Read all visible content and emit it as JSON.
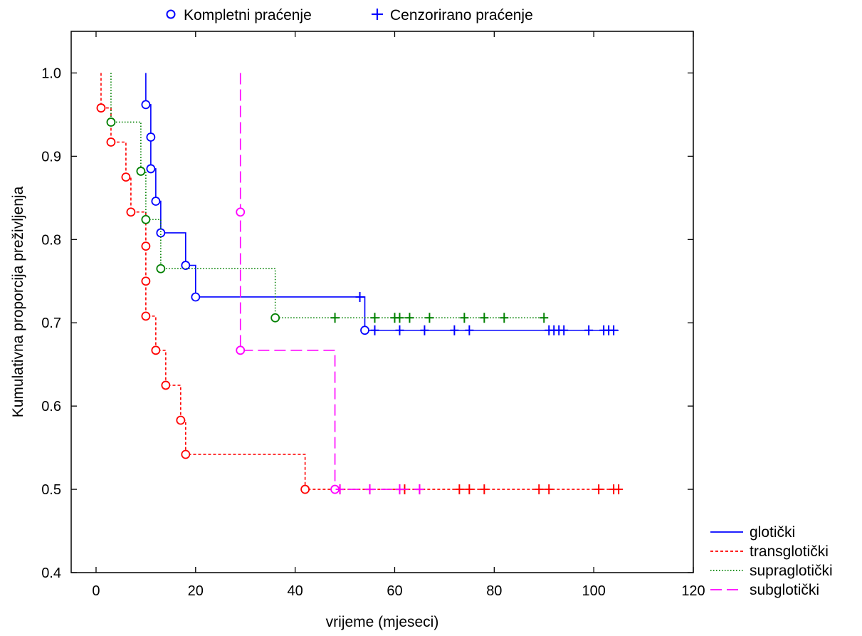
{
  "chart_data": {
    "type": "line",
    "subtype": "kaplan-meier step",
    "title": "",
    "xlabel": "vrijeme (mjeseci)",
    "ylabel": "Kumulativna proporcija preživljenja",
    "xlim": [
      -5,
      120
    ],
    "ylim": [
      0.4,
      1.05
    ],
    "x_ticks": [
      0,
      20,
      40,
      60,
      80,
      100,
      120
    ],
    "y_ticks": [
      0.4,
      0.5,
      0.6,
      0.7,
      0.8,
      0.9,
      1.0
    ],
    "x_tick_labels": [
      "0",
      "20",
      "40",
      "60",
      "80",
      "100",
      "120"
    ],
    "y_tick_labels": [
      "0.4",
      "0.5",
      "0.6",
      "0.7",
      "0.8",
      "0.9",
      "1.0"
    ],
    "marker_legend": {
      "complete": "Kompletni praćenje",
      "censored": "Cenzorirano praćenje",
      "color": "#0000ff",
      "placement": "top"
    },
    "series_legend_placement": "bottom-right",
    "series": [
      {
        "name": "glotički",
        "color": "#0000ff",
        "dash": "solid",
        "start": [
          10,
          1.0
        ],
        "events": [
          [
            10,
            0.962
          ],
          [
            11,
            0.923
          ],
          [
            11,
            0.885
          ],
          [
            12,
            0.846
          ],
          [
            13,
            0.808
          ],
          [
            18,
            0.769
          ],
          [
            20,
            0.731
          ],
          [
            54,
            0.691
          ]
        ],
        "censored": [
          [
            53,
            0.731
          ],
          [
            56,
            0.691
          ],
          [
            61,
            0.691
          ],
          [
            66,
            0.691
          ],
          [
            72,
            0.691
          ],
          [
            75,
            0.691
          ],
          [
            91,
            0.691
          ],
          [
            92,
            0.691
          ],
          [
            93,
            0.691
          ],
          [
            94,
            0.691
          ],
          [
            99,
            0.691
          ],
          [
            102,
            0.691
          ],
          [
            103,
            0.691
          ],
          [
            104,
            0.691
          ]
        ],
        "end_x": 105
      },
      {
        "name": "transglotički",
        "color": "#ff0000",
        "dash": "dashed",
        "start": [
          1,
          1.0
        ],
        "events": [
          [
            1,
            0.958
          ],
          [
            3,
            0.917
          ],
          [
            6,
            0.875
          ],
          [
            7,
            0.833
          ],
          [
            10,
            0.792
          ],
          [
            10,
            0.75
          ],
          [
            10,
            0.708
          ],
          [
            12,
            0.667
          ],
          [
            14,
            0.625
          ],
          [
            17,
            0.583
          ],
          [
            18,
            0.542
          ],
          [
            42,
            0.5
          ]
        ],
        "censored": [
          [
            49,
            0.5
          ],
          [
            55,
            0.5
          ],
          [
            61,
            0.5
          ],
          [
            62,
            0.5
          ],
          [
            65,
            0.5
          ],
          [
            73,
            0.5
          ],
          [
            75,
            0.5
          ],
          [
            78,
            0.5
          ],
          [
            89,
            0.5
          ],
          [
            91,
            0.5
          ],
          [
            101,
            0.5
          ],
          [
            104,
            0.5
          ],
          [
            105,
            0.5
          ]
        ],
        "end_x": 105
      },
      {
        "name": "supraglotički",
        "color": "#008000",
        "dash": "dotted",
        "start": [
          3,
          1.0
        ],
        "events": [
          [
            3,
            0.941
          ],
          [
            9,
            0.882
          ],
          [
            10,
            0.824
          ],
          [
            13,
            0.765
          ],
          [
            36,
            0.706
          ]
        ],
        "censored": [
          [
            48,
            0.706
          ],
          [
            56,
            0.706
          ],
          [
            60,
            0.706
          ],
          [
            61,
            0.706
          ],
          [
            63,
            0.706
          ],
          [
            67,
            0.706
          ],
          [
            74,
            0.706
          ],
          [
            78,
            0.706
          ],
          [
            82,
            0.706
          ],
          [
            90,
            0.706
          ]
        ],
        "end_x": 91
      },
      {
        "name": "subglotički",
        "color": "#ff00ff",
        "dash": "longdash",
        "start": [
          29,
          1.0
        ],
        "events": [
          [
            29,
            0.833
          ],
          [
            29,
            0.667
          ],
          [
            48,
            0.5
          ]
        ],
        "censored": [
          [
            49,
            0.5
          ],
          [
            55,
            0.5
          ],
          [
            61,
            0.5
          ],
          [
            65,
            0.5
          ]
        ],
        "end_x": 65
      }
    ]
  }
}
